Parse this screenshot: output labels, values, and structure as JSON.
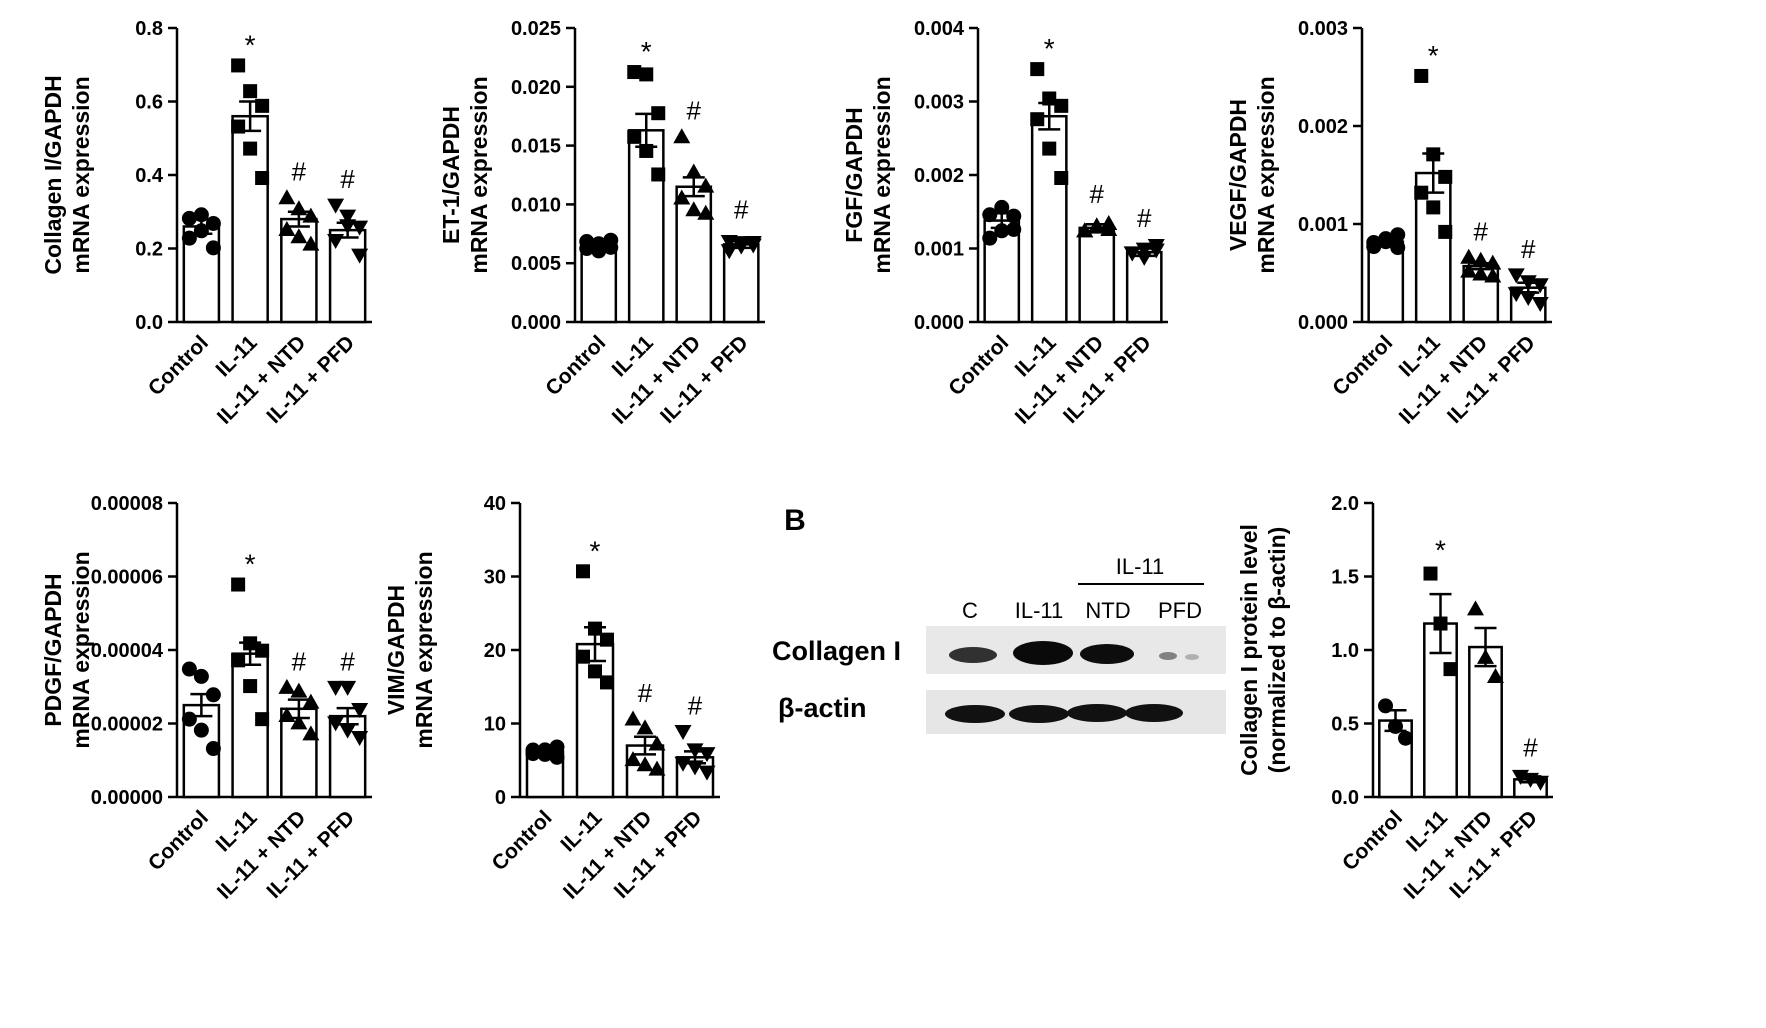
{
  "chart_data": [
    {
      "type": "bar",
      "ylabel": [
        "Collagen I/GAPDH",
        "mRNA expression"
      ],
      "ylim": [
        0,
        0.8
      ],
      "yticks": [
        "0.0",
        "0.2",
        "0.4",
        "0.6",
        "0.8"
      ],
      "categories": [
        "Control",
        "IL-11",
        "IL-11 + NTD",
        "IL-11 + PFD"
      ],
      "values": [
        0.26,
        0.56,
        0.28,
        0.25
      ],
      "errors": [
        0.02,
        0.04,
        0.02,
        0.02
      ],
      "points": [
        [
          0.22,
          0.24,
          0.26,
          0.29,
          0.3,
          0.21
        ],
        [
          0.69,
          0.62,
          0.58,
          0.54,
          0.48,
          0.4
        ],
        [
          0.33,
          0.3,
          0.28,
          0.26,
          0.24,
          0.22
        ],
        [
          0.31,
          0.28,
          0.25,
          0.23,
          0.27,
          0.19
        ]
      ],
      "markers": [
        "circle",
        "square",
        "triangle",
        "triangle-down"
      ],
      "annotations": [
        "",
        "*",
        "#",
        "#"
      ]
    },
    {
      "type": "bar",
      "ylabel": [
        "ET-1/GAPDH",
        "mRNA expression"
      ],
      "ylim": [
        0,
        0.025
      ],
      "yticks": [
        "0.000",
        "0.005",
        "0.010",
        "0.015",
        "0.020",
        "0.025"
      ],
      "categories": [
        "Control",
        "IL-11",
        "IL-11 + NTD",
        "IL-11 + PFD"
      ],
      "values": [
        0.0065,
        0.0163,
        0.0115,
        0.0066
      ],
      "errors": [
        0.0003,
        0.0014,
        0.0008,
        0.0003
      ],
      "points": [
        [
          0.006,
          0.0064,
          0.0067,
          0.0071,
          0.0063,
          0.0066
        ],
        [
          0.021,
          0.0208,
          0.0175,
          0.016,
          0.0148,
          0.0128
        ],
        [
          0.0155,
          0.0125,
          0.0113,
          0.0108,
          0.0098,
          0.0095
        ],
        [
          0.0058,
          0.0062,
          0.0065,
          0.0071,
          0.007,
          0.0068
        ]
      ],
      "markers": [
        "circle",
        "square",
        "triangle",
        "triangle-down"
      ],
      "annotations": [
        "",
        "*",
        "#",
        "#"
      ]
    },
    {
      "type": "bar",
      "ylabel": [
        "FGF/GAPDH",
        "mRNA expression"
      ],
      "ylim": [
        0,
        0.004
      ],
      "yticks": [
        "0.000",
        "0.001",
        "0.002",
        "0.003",
        "0.004"
      ],
      "categories": [
        "Control",
        "IL-11",
        "IL-11 + NTD",
        "IL-11 + PFD"
      ],
      "values": [
        0.00138,
        0.0028,
        0.00128,
        0.00095
      ],
      "errors": [
        0.0001,
        0.00018,
        5e-05,
        5e-05
      ],
      "points": [
        [
          0.0011,
          0.0012,
          0.0014,
          0.0015,
          0.0016,
          0.0013
        ],
        [
          0.0034,
          0.003,
          0.0029,
          0.0028,
          0.0024,
          0.002
        ],
        [
          0.0012,
          0.00125,
          0.0013,
          0.00128,
          0.00135,
          0.0013
        ],
        [
          0.0009,
          0.00095,
          0.001,
          0.00098,
          0.00092,
          0.00102
        ]
      ],
      "markers": [
        "circle",
        "square",
        "triangle",
        "triangle-down"
      ],
      "annotations": [
        "",
        "*",
        "#",
        "#"
      ]
    },
    {
      "type": "bar",
      "ylabel": [
        "VEGF/GAPDH",
        "mRNA expression"
      ],
      "ylim": [
        0,
        0.003
      ],
      "yticks": [
        "0.000",
        "0.001",
        "0.002",
        "0.003"
      ],
      "categories": [
        "Control",
        "IL-11",
        "IL-11 + NTD",
        "IL-11 + PFD"
      ],
      "values": [
        0.00082,
        0.00152,
        0.00057,
        0.00035
      ],
      "errors": [
        4e-05,
        0.0002,
        3e-05,
        5e-05
      ],
      "points": [
        [
          0.00078,
          0.00082,
          0.00086,
          0.0008,
          0.00085,
          0.00079
        ],
        [
          0.00248,
          0.00168,
          0.00145,
          0.00135,
          0.0012,
          0.00095
        ],
        [
          0.00063,
          0.0006,
          0.00057,
          0.00055,
          0.00052,
          0.0005
        ],
        [
          0.00045,
          0.00038,
          0.00035,
          0.00032,
          0.00028,
          0.00022
        ]
      ],
      "markers": [
        "circle",
        "square",
        "triangle",
        "triangle-down"
      ],
      "annotations": [
        "",
        "*",
        "#",
        "#"
      ]
    },
    {
      "type": "bar",
      "ylabel": [
        "PDGF/GAPDH",
        "mRNA expression"
      ],
      "ylim": [
        0,
        8e-05
      ],
      "yticks": [
        "0.00000",
        "0.00002",
        "0.00004",
        "0.00006",
        "0.00008"
      ],
      "categories": [
        "Control",
        "IL-11",
        "IL-11 + NTD",
        "IL-11 + PFD"
      ],
      "values": [
        2.5e-05,
        3.9e-05,
        2.4e-05,
        2.2e-05
      ],
      "errors": [
        3e-06,
        3e-06,
        2.5e-06,
        2.2e-06
      ],
      "points": [
        [
          3.4e-05,
          3.2e-05,
          2.7e-05,
          2.2e-05,
          1.9e-05,
          1.4e-05
        ],
        [
          5.7e-05,
          4.1e-05,
          3.9e-05,
          3.8e-05,
          3.1e-05,
          2.2e-05
        ],
        [
          2.9e-05,
          2.8e-05,
          2.5e-05,
          2.3e-05,
          2.1e-05,
          1.8e-05
        ],
        [
          2.9e-05,
          2.9e-05,
          2.3e-05,
          2.1e-05,
          1.9e-05,
          1.7e-05
        ]
      ],
      "markers": [
        "circle",
        "square",
        "triangle",
        "triangle-down"
      ],
      "annotations": [
        "",
        "*",
        "#",
        "#"
      ]
    },
    {
      "type": "bar",
      "ylabel": [
        "VIM/GAPDH",
        "mRNA expression"
      ],
      "ylim": [
        0,
        40
      ],
      "yticks": [
        "0",
        "10",
        "20",
        "30",
        "40"
      ],
      "categories": [
        "Control",
        "IL-11",
        "IL-11 + NTD",
        "IL-11 + PFD"
      ],
      "values": [
        6.2,
        20.8,
        7.0,
        5.4
      ],
      "errors": [
        0.5,
        2.3,
        1.2,
        0.8
      ],
      "points": [
        [
          5.5,
          6.0,
          6.4,
          6.8,
          6.2,
          5.8
        ],
        [
          30.3,
          22.5,
          21.0,
          19.5,
          17.5,
          16.0
        ],
        [
          10.2,
          9.0,
          6.8,
          5.5,
          4.8,
          4.2
        ],
        [
          8.5,
          6.0,
          5.5,
          5.0,
          4.5,
          3.8
        ]
      ],
      "markers": [
        "circle",
        "square",
        "triangle",
        "triangle-down"
      ],
      "annotations": [
        "",
        "*",
        "#",
        "#"
      ]
    },
    {
      "type": "bar",
      "ylabel": [
        "Collagen I protein level",
        "(normalized to β-actin)"
      ],
      "ylim": [
        0,
        2.0
      ],
      "yticks": [
        "0.0",
        "0.5",
        "1.0",
        "1.5",
        "2.0"
      ],
      "categories": [
        "Control",
        "IL-11",
        "IL-11 + NTD",
        "IL-11 + PFD"
      ],
      "values": [
        0.52,
        1.18,
        1.02,
        0.12
      ],
      "errors": [
        0.07,
        0.2,
        0.13,
        0.02
      ],
      "points": [
        [
          0.62,
          0.48,
          0.4
        ],
        [
          1.52,
          1.18,
          0.87
        ],
        [
          1.28,
          0.95,
          0.82
        ],
        [
          0.14,
          0.12,
          0.1
        ]
      ],
      "markers": [
        "circle",
        "square",
        "triangle",
        "triangle-down"
      ],
      "annotations": [
        "",
        "*",
        "",
        "#"
      ]
    }
  ],
  "panel_b": {
    "panel_label": "B",
    "group_label": "IL-11",
    "lane_labels": [
      "C",
      "IL-11",
      "NTD",
      "PFD"
    ],
    "row_labels": [
      "Collagen I",
      "β-actin"
    ]
  }
}
